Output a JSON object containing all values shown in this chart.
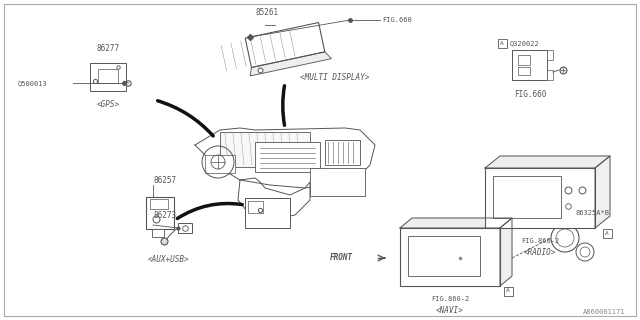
{
  "bg_color": "#ffffff",
  "border_color": "#000000",
  "line_color": "#555555",
  "text_color": "#555555",
  "watermark": "A860001171",
  "gps_label": "86277",
  "gps_sub": "<GPS>",
  "gps_part2": "Q500013",
  "disp_label": "85261",
  "disp_sub": "<MULTI DISPLAY>",
  "fig660_label": "FIG.660",
  "q320_label": "Q320022",
  "q320_sub": "FIG.660",
  "radio_fig": "FIG.860-2",
  "radio_sub": "<RADIO>",
  "aux_label1": "86257",
  "aux_label2": "86273",
  "aux_sub": "<AUX+USB>",
  "navi_fig": "FIG.860-2",
  "navi_sub": "<NAVI>",
  "conn_label": "86325A*B",
  "front_label": "FRONT",
  "font_size": 5.5,
  "font_size_sm": 5.0
}
